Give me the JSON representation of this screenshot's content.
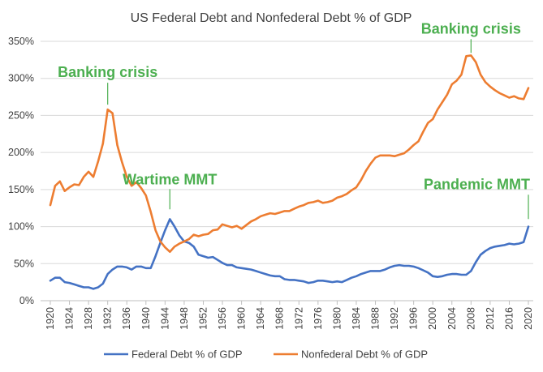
{
  "chart_data": {
    "type": "line",
    "title": "US Federal Debt and Nonfederal Debt % of GDP",
    "xlabel": "",
    "ylabel": "",
    "ylim": [
      0,
      350
    ],
    "yticks": [
      0,
      50,
      100,
      150,
      200,
      250,
      300,
      350
    ],
    "y_tick_labels": [
      "0%",
      "50%",
      "100%",
      "150%",
      "200%",
      "250%",
      "300%",
      "350%"
    ],
    "xlim": [
      1920,
      2020
    ],
    "xticks": [
      1920,
      1924,
      1928,
      1932,
      1936,
      1940,
      1944,
      1948,
      1952,
      1956,
      1960,
      1964,
      1968,
      1972,
      1976,
      1980,
      1984,
      1988,
      1992,
      1996,
      2000,
      2004,
      2008,
      2012,
      2016,
      2020
    ],
    "x_tick_labels": [
      "1920",
      "1924",
      "1928",
      "1932",
      "1936",
      "1940",
      "1944",
      "1948",
      "1952",
      "1956",
      "1960",
      "1964",
      "1968",
      "1972",
      "1976",
      "1980",
      "1984",
      "1988",
      "1992",
      "1996",
      "2000",
      "2004",
      "2008",
      "2012",
      "2016",
      "2020"
    ],
    "grid": "horizontal",
    "legend": "bottom",
    "series": [
      {
        "name": "Federal Debt % of GDP",
        "color": "#4472C4",
        "points": [
          [
            1920,
            27
          ],
          [
            1921,
            31
          ],
          [
            1922,
            31
          ],
          [
            1923,
            25
          ],
          [
            1924,
            24
          ],
          [
            1925,
            22
          ],
          [
            1926,
            20
          ],
          [
            1927,
            18
          ],
          [
            1928,
            18
          ],
          [
            1929,
            16
          ],
          [
            1930,
            18
          ],
          [
            1931,
            23
          ],
          [
            1932,
            36
          ],
          [
            1933,
            42
          ],
          [
            1934,
            46
          ],
          [
            1935,
            46
          ],
          [
            1936,
            45
          ],
          [
            1937,
            42
          ],
          [
            1938,
            46
          ],
          [
            1939,
            46
          ],
          [
            1940,
            44
          ],
          [
            1941,
            44
          ],
          [
            1942,
            60
          ],
          [
            1943,
            78
          ],
          [
            1944,
            95
          ],
          [
            1945,
            110
          ],
          [
            1946,
            100
          ],
          [
            1947,
            88
          ],
          [
            1948,
            80
          ],
          [
            1949,
            78
          ],
          [
            1950,
            73
          ],
          [
            1951,
            62
          ],
          [
            1952,
            60
          ],
          [
            1953,
            58
          ],
          [
            1954,
            59
          ],
          [
            1955,
            55
          ],
          [
            1956,
            51
          ],
          [
            1957,
            48
          ],
          [
            1958,
            48
          ],
          [
            1959,
            45
          ],
          [
            1960,
            44
          ],
          [
            1961,
            43
          ],
          [
            1962,
            42
          ],
          [
            1963,
            40
          ],
          [
            1964,
            38
          ],
          [
            1965,
            36
          ],
          [
            1966,
            34
          ],
          [
            1967,
            33
          ],
          [
            1968,
            33
          ],
          [
            1969,
            29
          ],
          [
            1970,
            28
          ],
          [
            1971,
            28
          ],
          [
            1972,
            27
          ],
          [
            1973,
            26
          ],
          [
            1974,
            24
          ],
          [
            1975,
            25
          ],
          [
            1976,
            27
          ],
          [
            1977,
            27
          ],
          [
            1978,
            26
          ],
          [
            1979,
            25
          ],
          [
            1980,
            26
          ],
          [
            1981,
            25
          ],
          [
            1982,
            28
          ],
          [
            1983,
            31
          ],
          [
            1984,
            33
          ],
          [
            1985,
            36
          ],
          [
            1986,
            38
          ],
          [
            1987,
            40
          ],
          [
            1988,
            40
          ],
          [
            1989,
            40
          ],
          [
            1990,
            42
          ],
          [
            1991,
            45
          ],
          [
            1992,
            47
          ],
          [
            1993,
            48
          ],
          [
            1994,
            47
          ],
          [
            1995,
            47
          ],
          [
            1996,
            46
          ],
          [
            1997,
            44
          ],
          [
            1998,
            41
          ],
          [
            1999,
            38
          ],
          [
            2000,
            33
          ],
          [
            2001,
            32
          ],
          [
            2002,
            33
          ],
          [
            2003,
            35
          ],
          [
            2004,
            36
          ],
          [
            2005,
            36
          ],
          [
            2006,
            35
          ],
          [
            2007,
            35
          ],
          [
            2008,
            40
          ],
          [
            2009,
            52
          ],
          [
            2010,
            62
          ],
          [
            2011,
            67
          ],
          [
            2012,
            71
          ],
          [
            2013,
            73
          ],
          [
            2014,
            74
          ],
          [
            2015,
            75
          ],
          [
            2016,
            77
          ],
          [
            2017,
            76
          ],
          [
            2018,
            77
          ],
          [
            2019,
            79
          ],
          [
            2020,
            100
          ]
        ]
      },
      {
        "name": "Nonfederal Debt % of GDP",
        "color": "#ED7D31",
        "points": [
          [
            1920,
            129
          ],
          [
            1921,
            155
          ],
          [
            1922,
            161
          ],
          [
            1923,
            148
          ],
          [
            1924,
            153
          ],
          [
            1925,
            157
          ],
          [
            1926,
            156
          ],
          [
            1927,
            167
          ],
          [
            1928,
            174
          ],
          [
            1929,
            167
          ],
          [
            1930,
            188
          ],
          [
            1931,
            212
          ],
          [
            1932,
            258
          ],
          [
            1933,
            253
          ],
          [
            1934,
            210
          ],
          [
            1935,
            187
          ],
          [
            1936,
            167
          ],
          [
            1937,
            155
          ],
          [
            1938,
            160
          ],
          [
            1939,
            152
          ],
          [
            1940,
            142
          ],
          [
            1941,
            120
          ],
          [
            1942,
            95
          ],
          [
            1943,
            80
          ],
          [
            1944,
            72
          ],
          [
            1945,
            66
          ],
          [
            1946,
            73
          ],
          [
            1947,
            77
          ],
          [
            1948,
            80
          ],
          [
            1949,
            83
          ],
          [
            1950,
            89
          ],
          [
            1951,
            87
          ],
          [
            1952,
            89
          ],
          [
            1953,
            90
          ],
          [
            1954,
            95
          ],
          [
            1955,
            96
          ],
          [
            1956,
            103
          ],
          [
            1957,
            101
          ],
          [
            1958,
            99
          ],
          [
            1959,
            101
          ],
          [
            1960,
            97
          ],
          [
            1961,
            102
          ],
          [
            1962,
            107
          ],
          [
            1963,
            110
          ],
          [
            1964,
            114
          ],
          [
            1965,
            116
          ],
          [
            1966,
            118
          ],
          [
            1967,
            117
          ],
          [
            1968,
            119
          ],
          [
            1969,
            121
          ],
          [
            1970,
            121
          ],
          [
            1971,
            124
          ],
          [
            1972,
            127
          ],
          [
            1973,
            129
          ],
          [
            1974,
            132
          ],
          [
            1975,
            133
          ],
          [
            1976,
            135
          ],
          [
            1977,
            132
          ],
          [
            1978,
            133
          ],
          [
            1979,
            135
          ],
          [
            1980,
            139
          ],
          [
            1981,
            141
          ],
          [
            1982,
            144
          ],
          [
            1983,
            149
          ],
          [
            1984,
            153
          ],
          [
            1985,
            163
          ],
          [
            1986,
            175
          ],
          [
            1987,
            185
          ],
          [
            1988,
            193
          ],
          [
            1989,
            196
          ],
          [
            1990,
            196
          ],
          [
            1991,
            196
          ],
          [
            1992,
            195
          ],
          [
            1993,
            197
          ],
          [
            1994,
            199
          ],
          [
            1995,
            204
          ],
          [
            1996,
            210
          ],
          [
            1997,
            215
          ],
          [
            1998,
            228
          ],
          [
            1999,
            240
          ],
          [
            2000,
            245
          ],
          [
            2001,
            258
          ],
          [
            2002,
            268
          ],
          [
            2003,
            278
          ],
          [
            2004,
            292
          ],
          [
            2005,
            297
          ],
          [
            2006,
            305
          ],
          [
            2007,
            330
          ],
          [
            2008,
            331
          ],
          [
            2009,
            322
          ],
          [
            2010,
            305
          ],
          [
            2011,
            295
          ],
          [
            2012,
            289
          ],
          [
            2013,
            284
          ],
          [
            2014,
            280
          ],
          [
            2015,
            277
          ],
          [
            2016,
            274
          ],
          [
            2017,
            276
          ],
          [
            2018,
            273
          ],
          [
            2019,
            272
          ],
          [
            2020,
            287
          ]
        ]
      }
    ],
    "annotations": [
      {
        "text": "Banking crisis",
        "x": 1932,
        "y": 258,
        "color": "#4CAF50"
      },
      {
        "text": "Wartime MMT",
        "x": 1945,
        "y": 120,
        "color": "#4CAF50"
      },
      {
        "text": "Banking crisis",
        "x": 2008,
        "y": 330,
        "color": "#4CAF50"
      },
      {
        "text": "Pandemic MMT",
        "x": 2020,
        "y": 108,
        "color": "#4CAF50"
      }
    ]
  }
}
